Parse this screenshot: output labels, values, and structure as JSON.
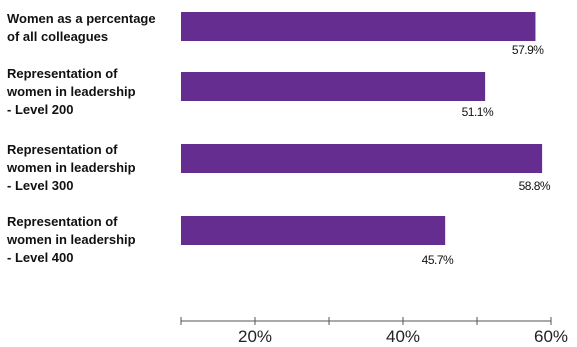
{
  "chart_data": {
    "type": "bar",
    "orientation": "horizontal",
    "categories": [
      [
        "Women as a percentage",
        "of all colleagues"
      ],
      [
        "Representation of",
        "women in leadership",
        "- Level 200"
      ],
      [
        "Representation of",
        "women in leadership",
        "- Level 300"
      ],
      [
        "Representation of",
        "women in leadership",
        "- Level 400"
      ]
    ],
    "values": [
      57.9,
      51.1,
      58.8,
      45.7
    ],
    "value_labels": [
      "57.9%",
      "51.1%",
      "58.8%",
      "45.7%"
    ],
    "xlim": [
      10,
      60
    ],
    "x_ticks": [
      10,
      20,
      30,
      40,
      50,
      60
    ],
    "x_tick_labels": [
      "",
      "20%",
      "",
      "40%",
      "",
      "60%"
    ],
    "grid": false,
    "legend": "none",
    "colors": {
      "bar": "#662d91",
      "text": "#111111",
      "axis": "#555555"
    }
  }
}
